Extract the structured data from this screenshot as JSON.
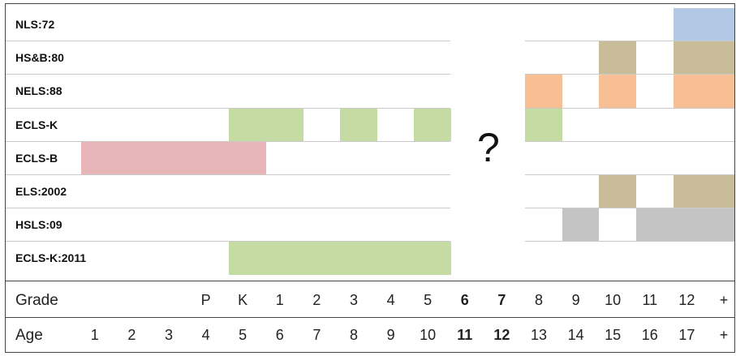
{
  "studies": [
    {
      "label": "NLS:72"
    },
    {
      "label": "HS&B:80"
    },
    {
      "label": "NELS:88"
    },
    {
      "label": "ECLS-K"
    },
    {
      "label": "ECLS-B"
    },
    {
      "label": "ELS:2002"
    },
    {
      "label": "HSLS:09"
    },
    {
      "label": "ECLS-K:2011"
    }
  ],
  "question_mark": "?",
  "axis": {
    "grade_label": "Grade",
    "age_label": "Age",
    "columns": [
      {
        "grade": "",
        "age": "1",
        "bold": false
      },
      {
        "grade": "",
        "age": "2",
        "bold": false
      },
      {
        "grade": "",
        "age": "3",
        "bold": false
      },
      {
        "grade": "P",
        "age": "4",
        "bold": false
      },
      {
        "grade": "K",
        "age": "5",
        "bold": false
      },
      {
        "grade": "1",
        "age": "6",
        "bold": false
      },
      {
        "grade": "2",
        "age": "7",
        "bold": false
      },
      {
        "grade": "3",
        "age": "8",
        "bold": false
      },
      {
        "grade": "4",
        "age": "9",
        "bold": false
      },
      {
        "grade": "5",
        "age": "10",
        "bold": false
      },
      {
        "grade": "6",
        "age": "11",
        "bold": true
      },
      {
        "grade": "7",
        "age": "12",
        "bold": true
      },
      {
        "grade": "8",
        "age": "13",
        "bold": false
      },
      {
        "grade": "9",
        "age": "14",
        "bold": false
      },
      {
        "grade": "10",
        "age": "15",
        "bold": false
      },
      {
        "grade": "11",
        "age": "16",
        "bold": false
      },
      {
        "grade": "12",
        "age": "17",
        "bold": false
      },
      {
        "grade": "+",
        "age": "+",
        "bold": false
      }
    ]
  },
  "colors": {
    "NLS:72": "#b3c8e4",
    "HS&B:80": "#c9bc98",
    "NELS:88": "#f8bf94",
    "ECLS-K": "#c5dba4",
    "ECLS-B": "#e8b6b8",
    "ELS:2002": "#c9bc98",
    "HSLS:09": "#c4c4c4",
    "ECLS-K:2011": "#c5dba4"
  },
  "coverage": [
    {
      "study": "NLS:72",
      "from": "12",
      "to": "+"
    },
    {
      "study": "HS&B:80",
      "from": "10",
      "to": "10"
    },
    {
      "study": "HS&B:80",
      "from": "12",
      "to": "+"
    },
    {
      "study": "NELS:88",
      "from": "8",
      "to": "8"
    },
    {
      "study": "NELS:88",
      "from": "10",
      "to": "10"
    },
    {
      "study": "NELS:88",
      "from": "12",
      "to": "+"
    },
    {
      "study": "ECLS-K",
      "from": "K",
      "to": "1"
    },
    {
      "study": "ECLS-K",
      "from": "3",
      "to": "3"
    },
    {
      "study": "ECLS-K",
      "from": "5",
      "to": "5"
    },
    {
      "study": "ECLS-K",
      "from": "8",
      "to": "8"
    },
    {
      "study": "ECLS-B",
      "from": "1",
      "to": "K"
    },
    {
      "study": "ELS:2002",
      "from": "10",
      "to": "10"
    },
    {
      "study": "ELS:2002",
      "from": "12",
      "to": "+"
    },
    {
      "study": "HSLS:09",
      "from": "9",
      "to": "9"
    },
    {
      "study": "HSLS:09",
      "from": "11",
      "to": "+"
    },
    {
      "study": "ECLS-K:2011",
      "from": "K",
      "to": "5"
    }
  ]
}
